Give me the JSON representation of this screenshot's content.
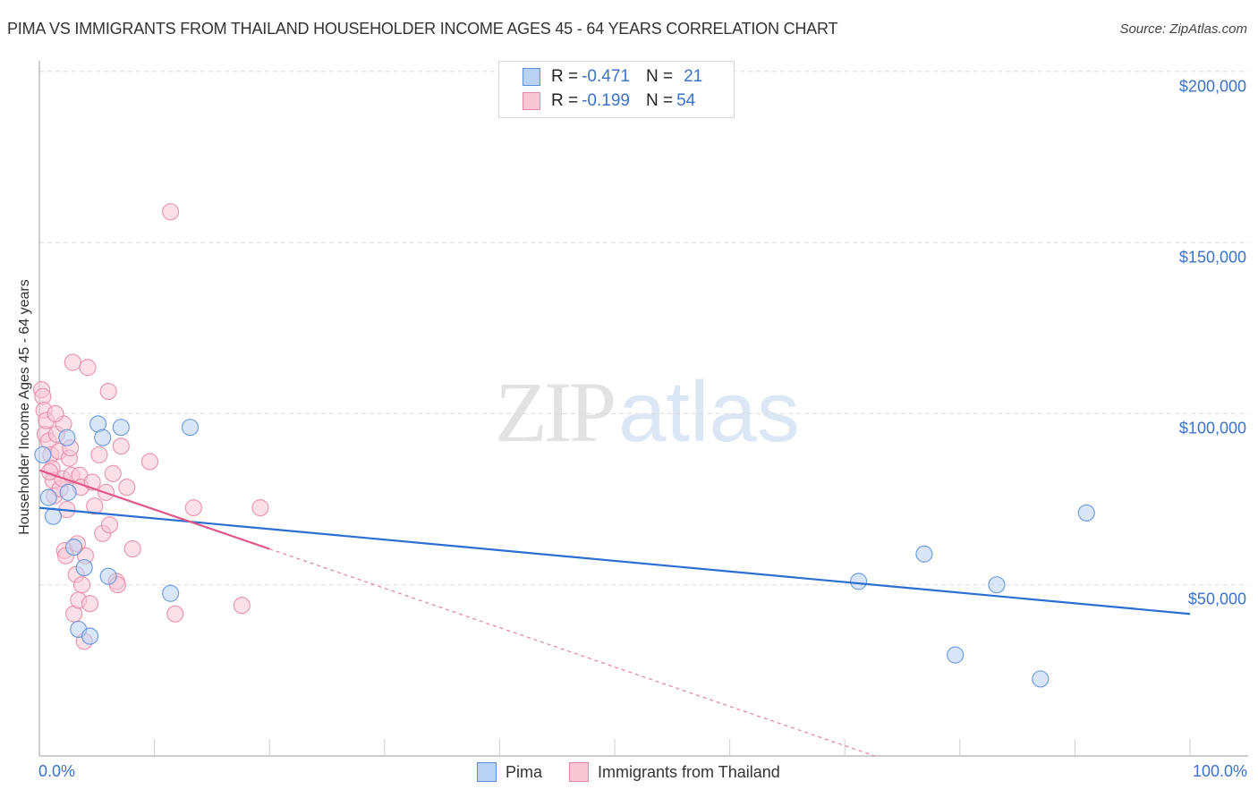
{
  "header": {
    "title": "PIMA VS IMMIGRANTS FROM THAILAND HOUSEHOLDER INCOME AGES 45 - 64 YEARS CORRELATION CHART",
    "source": "Source: ZipAtlas.com"
  },
  "watermark": {
    "zip": "ZIP",
    "atlas": "atlas"
  },
  "legend_box": {
    "rows": [
      {
        "r_label": "R = ",
        "r_value": "-0.471",
        "n_label": "N = ",
        "n_value": "21",
        "color": "#b9d1f3",
        "border": "#5b8fdc"
      },
      {
        "r_label": "R = ",
        "r_value": "-0.199",
        "n_label": "N = ",
        "n_value": "54",
        "color": "#f8c6d5",
        "border": "#e58aa6"
      }
    ]
  },
  "bottom_legend": {
    "items": [
      {
        "label": "Pima",
        "color": "#b9d1f3",
        "border": "#5b8fdc"
      },
      {
        "label": "Immigrants from Thailand",
        "color": "#f8c6d5",
        "border": "#e58aa6"
      }
    ]
  },
  "axes": {
    "ylabel": "Householder Income Ages 45 - 64 years",
    "y_ticks": [
      "$200,000",
      "$150,000",
      "$100,000",
      "$50,000"
    ],
    "x_ticks": [
      "0.0%",
      "100.0%"
    ]
  },
  "chart_data": {
    "type": "scatter",
    "title": "PIMA VS IMMIGRANTS FROM THAILAND HOUSEHOLDER INCOME AGES 45 - 64 YEARS CORRELATION CHART",
    "xlabel": "",
    "ylabel": "Householder Income Ages 45 - 64 years",
    "xlim": [
      0,
      100
    ],
    "ylim": [
      0,
      205000
    ],
    "x_unit": "%",
    "grid": true,
    "legend_position": "bottom",
    "series": [
      {
        "name": "Pima",
        "color": "#5b8fdc",
        "fill": "#b9d1f3",
        "R": -0.471,
        "N": 21,
        "points": [
          [
            0.3,
            88000
          ],
          [
            0.8,
            75500
          ],
          [
            1.2,
            70000
          ],
          [
            2.4,
            93000
          ],
          [
            2.5,
            77000
          ],
          [
            3.0,
            61000
          ],
          [
            3.4,
            37000
          ],
          [
            3.9,
            55000
          ],
          [
            4.4,
            35000
          ],
          [
            5.1,
            97000
          ],
          [
            5.5,
            93000
          ],
          [
            6.0,
            52500
          ],
          [
            7.1,
            96000
          ],
          [
            11.4,
            47500
          ],
          [
            13.1,
            96000
          ],
          [
            71.2,
            51000
          ],
          [
            76.9,
            59000
          ],
          [
            79.6,
            29500
          ],
          [
            83.2,
            50000
          ],
          [
            87.0,
            22500
          ],
          [
            91.0,
            71000
          ]
        ],
        "trend": {
          "x": [
            0,
            100
          ],
          "y": [
            72500,
            41500
          ],
          "style": "solid"
        }
      },
      {
        "name": "Immigrants from Thailand",
        "color": "#e58aa6",
        "fill": "#f8c6d5",
        "R": -0.199,
        "N": 54,
        "points": [
          [
            0.2,
            107000
          ],
          [
            0.3,
            105000
          ],
          [
            0.4,
            101000
          ],
          [
            0.5,
            94000
          ],
          [
            0.6,
            98000
          ],
          [
            0.8,
            92000
          ],
          [
            1.0,
            88000
          ],
          [
            1.1,
            84000
          ],
          [
            1.2,
            80500
          ],
          [
            1.3,
            76000
          ],
          [
            1.5,
            94000
          ],
          [
            1.7,
            89000
          ],
          [
            1.8,
            78000
          ],
          [
            2.0,
            81000
          ],
          [
            2.1,
            97000
          ],
          [
            2.2,
            60000
          ],
          [
            2.3,
            58500
          ],
          [
            2.4,
            72000
          ],
          [
            2.6,
            87000
          ],
          [
            2.8,
            82000
          ],
          [
            2.9,
            115000
          ],
          [
            3.0,
            41500
          ],
          [
            3.2,
            53000
          ],
          [
            3.3,
            62000
          ],
          [
            3.4,
            45500
          ],
          [
            3.5,
            82000
          ],
          [
            3.6,
            78500
          ],
          [
            3.7,
            50000
          ],
          [
            3.9,
            33500
          ],
          [
            4.0,
            58500
          ],
          [
            4.2,
            113500
          ],
          [
            4.4,
            44500
          ],
          [
            4.6,
            80000
          ],
          [
            4.8,
            73000
          ],
          [
            5.2,
            88000
          ],
          [
            5.5,
            65000
          ],
          [
            5.8,
            77000
          ],
          [
            6.0,
            106500
          ],
          [
            6.1,
            67500
          ],
          [
            6.4,
            82500
          ],
          [
            6.7,
            51000
          ],
          [
            6.8,
            50000
          ],
          [
            7.1,
            90500
          ],
          [
            7.6,
            78500
          ],
          [
            9.6,
            86000
          ],
          [
            11.4,
            159000
          ],
          [
            11.8,
            41500
          ],
          [
            13.4,
            72500
          ],
          [
            17.6,
            44000
          ],
          [
            19.2,
            72500
          ],
          [
            8.1,
            60500
          ],
          [
            2.7,
            90000
          ],
          [
            1.4,
            100000
          ],
          [
            0.9,
            83000
          ]
        ],
        "trend": {
          "x": [
            0,
            20
          ],
          "y": [
            83500,
            60500
          ],
          "style": "solid",
          "extension": {
            "x": [
              20,
              72.6
            ],
            "y": [
              60500,
              0
            ],
            "style": "dashed"
          }
        }
      }
    ]
  }
}
